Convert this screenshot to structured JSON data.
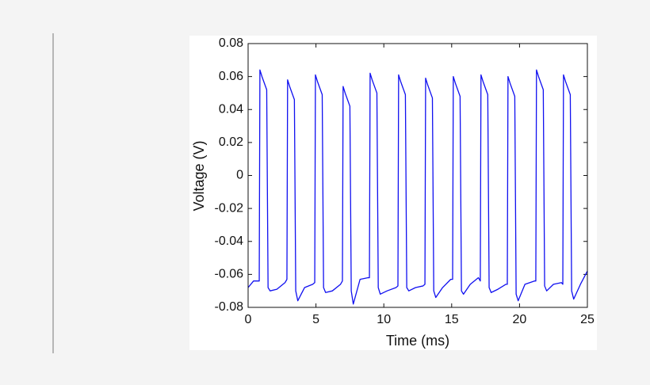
{
  "chart_data": {
    "type": "line",
    "xlabel": "Time (ms)",
    "ylabel": "Voltage (V)",
    "xlim": [
      0,
      25
    ],
    "ylim": [
      -0.08,
      0.08
    ],
    "xticks": [
      0,
      5,
      10,
      15,
      20,
      25
    ],
    "yticks": [
      0.08,
      0.06,
      0.04,
      0.02,
      0,
      -0.02,
      -0.04,
      -0.06,
      -0.08
    ],
    "series": [
      {
        "color": "#1010f0",
        "x": [
          0,
          0.4,
          0.82,
          0.87,
          1.02,
          1.37,
          1.47,
          1.62,
          2.12,
          2.72,
          2.86,
          2.91,
          3.06,
          3.41,
          3.51,
          3.66,
          4.16,
          4.76,
          4.91,
          4.96,
          5.11,
          5.46,
          5.56,
          5.71,
          6.21,
          6.81,
          6.95,
          7.0,
          7.15,
          7.5,
          7.6,
          7.75,
          8.25,
          8.85,
          8.94,
          8.99,
          9.14,
          9.49,
          9.59,
          9.74,
          10.24,
          10.9,
          11.04,
          11.09,
          11.24,
          11.59,
          11.69,
          11.84,
          12.34,
          12.89,
          13.03,
          13.08,
          13.23,
          13.58,
          13.68,
          13.83,
          14.33,
          14.93,
          15.07,
          15.12,
          15.27,
          15.62,
          15.72,
          15.87,
          16.37,
          16.97,
          17.11,
          17.16,
          17.31,
          17.66,
          17.76,
          17.91,
          18.41,
          19.0,
          19.1,
          19.15,
          19.3,
          19.65,
          19.75,
          19.9,
          20.4,
          21.1,
          21.2,
          21.25,
          21.4,
          21.75,
          21.85,
          22.0,
          22.5,
          23.09,
          23.19,
          23.24,
          23.39,
          23.74,
          23.84,
          23.99,
          24.49,
          25
        ],
        "values": [
          -0.068,
          -0.064,
          -0.064,
          0.064,
          0.06,
          0.052,
          -0.068,
          -0.07,
          -0.069,
          -0.065,
          -0.063,
          0.058,
          0.054,
          0.046,
          -0.07,
          -0.076,
          -0.068,
          -0.066,
          -0.065,
          0.061,
          0.057,
          0.049,
          -0.068,
          -0.071,
          -0.07,
          -0.066,
          -0.064,
          0.054,
          0.05,
          0.042,
          -0.07,
          -0.078,
          -0.063,
          -0.062,
          -0.062,
          0.062,
          0.058,
          0.05,
          -0.068,
          -0.072,
          -0.07,
          -0.068,
          -0.067,
          0.061,
          0.057,
          0.049,
          -0.068,
          -0.07,
          -0.068,
          -0.067,
          -0.066,
          0.059,
          0.055,
          0.047,
          -0.07,
          -0.074,
          -0.068,
          -0.063,
          -0.063,
          0.06,
          0.056,
          0.048,
          -0.07,
          -0.072,
          -0.066,
          -0.062,
          -0.064,
          0.061,
          0.057,
          0.049,
          -0.068,
          -0.071,
          -0.069,
          -0.066,
          -0.066,
          0.06,
          0.056,
          0.048,
          -0.072,
          -0.076,
          -0.066,
          -0.064,
          -0.064,
          0.064,
          0.06,
          0.052,
          -0.067,
          -0.07,
          -0.066,
          -0.065,
          -0.066,
          0.061,
          0.057,
          0.049,
          -0.07,
          -0.075,
          -0.066,
          -0.058
        ]
      }
    ]
  }
}
